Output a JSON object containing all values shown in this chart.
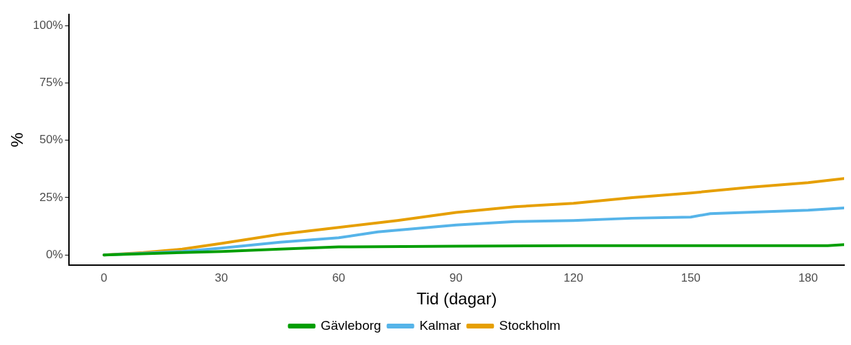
{
  "chart_data": {
    "type": "line",
    "xlabel": "Tid (dagar)",
    "ylabel": "%",
    "xlim": [
      -8.9,
      189.2
    ],
    "xticks": [
      0,
      30,
      60,
      90,
      120,
      150,
      180
    ],
    "ylim": [
      -4.4,
      104.8
    ],
    "yticks": [
      {
        "value": 0,
        "label": "0%"
      },
      {
        "value": 25,
        "label": "25%"
      },
      {
        "value": 50,
        "label": "50%"
      },
      {
        "value": 75,
        "label": "75%"
      },
      {
        "value": 100,
        "label": "100%"
      }
    ],
    "grid": false,
    "legend": "bottom",
    "marker": "none",
    "line_style": "solid",
    "series": [
      {
        "name": "Gävleborg",
        "color": "#009e00",
        "x": [
          0,
          10,
          20,
          30,
          45,
          60,
          90,
          120,
          150,
          185,
          189.2
        ],
        "values": [
          0,
          0.5,
          1,
          1.5,
          2.5,
          3.5,
          3.8,
          4,
          4,
          4,
          4.5
        ]
      },
      {
        "name": "Kalmar",
        "color": "#56b4e9",
        "x": [
          0,
          20,
          30,
          45,
          60,
          70,
          90,
          105,
          120,
          135,
          150,
          155,
          180,
          189.2
        ],
        "values": [
          0,
          1.5,
          3,
          5.5,
          7.5,
          10,
          13,
          14.5,
          15,
          16,
          16.5,
          18,
          19.5,
          20.5
        ]
      },
      {
        "name": "Stockholm",
        "color": "#e69f00",
        "x": [
          0,
          10,
          20,
          30,
          45,
          60,
          75,
          90,
          105,
          120,
          135,
          150,
          165,
          180,
          189.2
        ],
        "values": [
          0,
          1,
          2.5,
          5,
          9,
          12,
          15,
          18.5,
          21,
          22.5,
          25,
          27,
          29.5,
          31.5,
          33.3
        ]
      }
    ]
  }
}
